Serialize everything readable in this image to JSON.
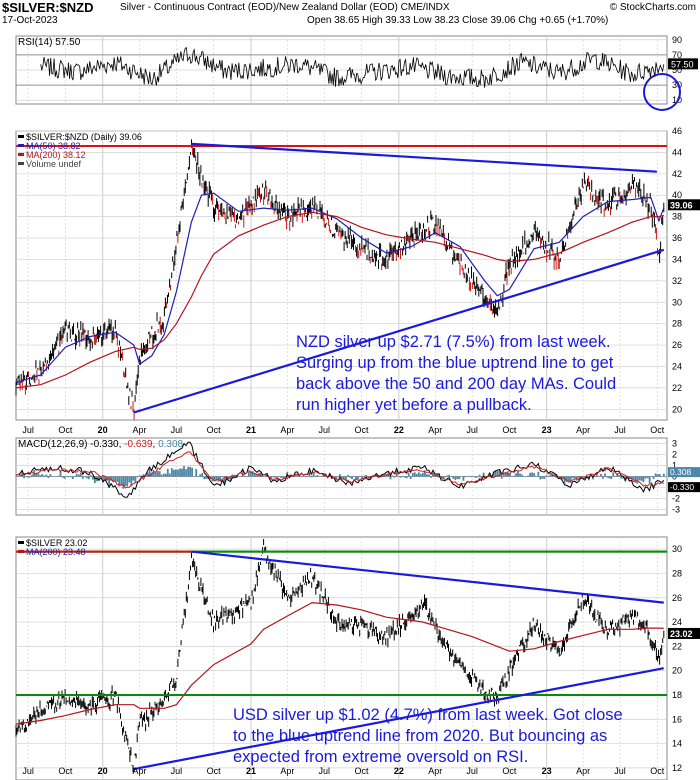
{
  "header": {
    "symbol": "$SILVER:$NZD",
    "description": "Silver - Continuous Contract (EOD)/New Zealand Dollar (EOD) CME/INDX",
    "date": "17-Oct-2023",
    "ohlc": "Open 38.65  High 39.33  Low 38.23  Close 39.06  Chg +0.65 (+1.70%)",
    "credit": "© StockCharts.com"
  },
  "annotations": {
    "nzd_note": "NZD silver up $2.71 (7.5%) from last week.\nSurging up from the blue uptrend line to get\nback above the 50 and 200 day MAs. Could\nrun higher yet before a pullback.",
    "usd_note": "USD silver up $1.02 (4.7%) from last week. Got close\nto the blue uptrend line from 2020. But bouncing as\nexpected from extreme oversold on RSI."
  },
  "colors": {
    "price": "#000000",
    "ma50": "#1f1fb4",
    "ma200": "#b4141e",
    "macd": "#000000",
    "signal": "#cc2020",
    "histogram": "#4a87a8",
    "trend": "#1a1adc",
    "resistance": "#e01010",
    "support": "#0a8a0a",
    "grid": "#d0d0d0"
  },
  "chart_data": [
    {
      "type": "line",
      "panel": "RSI",
      "legend": "RSI(14) 57.50",
      "ylim": [
        5,
        95
      ],
      "yticks": [
        10,
        30,
        50,
        70,
        90
      ],
      "overbought": 70,
      "oversold": 30,
      "last_value": 57.5,
      "last_label": "57.50",
      "x": [
        "2019-08",
        "2019-11",
        "2020-02",
        "2020-05",
        "2020-08",
        "2020-11",
        "2021-02",
        "2021-05",
        "2021-08",
        "2021-11",
        "2022-02",
        "2022-05",
        "2022-08",
        "2022-11",
        "2023-02",
        "2023-05",
        "2023-08",
        "2023-10-17"
      ],
      "values": [
        55,
        48,
        60,
        38,
        72,
        48,
        52,
        58,
        40,
        47,
        55,
        42,
        38,
        60,
        46,
        65,
        44,
        57.5
      ]
    },
    {
      "type": "line",
      "panel": "$SILVER:$NZD",
      "legend": [
        "$SILVER:$NZD (Daily) 39.06",
        "MA(50) 38.82",
        "MA(200) 38.12",
        "Volume undef"
      ],
      "ylim": [
        19,
        46
      ],
      "yticks": [
        20,
        22,
        24,
        26,
        28,
        30,
        32,
        34,
        36,
        38,
        40,
        42,
        44,
        46
      ],
      "last_value": 39.06,
      "last_label": "39.06",
      "x": [
        "2019-06",
        "2019-08",
        "2019-10",
        "2019-12",
        "2020-02",
        "2020-03-18",
        "2020-04",
        "2020-05",
        "2020-06",
        "2020-07",
        "2020-08-07",
        "2020-09",
        "2020-10",
        "2020-12",
        "2021-02",
        "2021-04",
        "2021-06",
        "2021-08",
        "2021-10",
        "2021-12",
        "2022-02",
        "2022-04",
        "2022-06",
        "2022-08",
        "2022-09-01",
        "2022-10",
        "2022-12",
        "2023-02",
        "2023-04",
        "2023-06",
        "2023-08",
        "2023-09-15",
        "2023-10-05",
        "2023-10-17"
      ],
      "series": [
        {
          "name": "$SILVER:$NZD",
          "values": [
            22.2,
            23.5,
            27.2,
            26.8,
            27.5,
            19.7,
            24.5,
            27.0,
            28.5,
            35.5,
            44.8,
            41.5,
            39.0,
            37.5,
            40.5,
            38.0,
            39.0,
            36.5,
            35.0,
            34.0,
            36.0,
            37.5,
            33.5,
            30.5,
            28.8,
            33.5,
            36.5,
            34.0,
            41.0,
            39.0,
            41.0,
            39.0,
            34.2,
            39.06
          ]
        },
        {
          "name": "MA(50)",
          "values": [
            22.5,
            23.2,
            25.8,
            26.8,
            27.2,
            26.0,
            24.2,
            25.0,
            27.0,
            31.0,
            37.5,
            40.0,
            40.2,
            38.5,
            38.8,
            38.6,
            38.8,
            37.8,
            36.0,
            34.6,
            35.2,
            36.5,
            35.2,
            32.0,
            30.6,
            31.2,
            35.0,
            35.6,
            38.0,
            39.4,
            39.6,
            39.8,
            37.6,
            38.82
          ]
        },
        {
          "name": "MA(200)",
          "values": [
            22.0,
            22.3,
            23.2,
            24.4,
            25.4,
            25.8,
            25.6,
            25.7,
            26.5,
            28.0,
            30.5,
            32.5,
            34.5,
            36.2,
            37.2,
            38.0,
            38.4,
            38.0,
            37.0,
            36.3,
            35.9,
            35.6,
            35.0,
            34.4,
            34.0,
            33.8,
            34.0,
            34.6,
            35.6,
            36.5,
            37.5,
            38.0,
            38.0,
            38.12
          ]
        }
      ],
      "resistance_line": {
        "y": 44.6
      },
      "downtrend_line": {
        "x": [
          "2020-08-07",
          "2023-09-30"
        ],
        "y": [
          44.8,
          42.2
        ]
      },
      "uptrend_line": {
        "x": [
          "2020-03-18",
          "2023-10-17"
        ],
        "y": [
          19.7,
          34.9
        ]
      }
    },
    {
      "type": "line",
      "panel": "MACD",
      "legend": {
        "name": "MACD(12,26,9)",
        "macd": "-0.330",
        "signal": "-0.639",
        "hist": "0.308"
      },
      "ylim": [
        -3.5,
        3.5
      ],
      "yticks": [
        -3,
        -2,
        -1,
        0,
        1,
        2,
        3
      ],
      "last_labels": [
        "0.308",
        "-0.330"
      ],
      "x": [
        "2019-06",
        "2019-09",
        "2019-12",
        "2020-03",
        "2020-05",
        "2020-08",
        "2020-10",
        "2021-01",
        "2021-03",
        "2021-06",
        "2021-09",
        "2021-12",
        "2022-03",
        "2022-06",
        "2022-09",
        "2022-12",
        "2023-03",
        "2023-06",
        "2023-09",
        "2023-10-17"
      ],
      "series": [
        {
          "name": "MACD",
          "values": [
            0.2,
            0.8,
            0.4,
            -1.8,
            0.8,
            3.0,
            -1.0,
            0.8,
            -0.4,
            0.5,
            -0.6,
            0.3,
            0.8,
            -0.9,
            0.3,
            1.1,
            -0.8,
            0.9,
            -1.2,
            -0.33
          ]
        },
        {
          "name": "Signal",
          "values": [
            0.1,
            0.6,
            0.5,
            -1.0,
            0.3,
            2.4,
            -0.5,
            0.5,
            -0.3,
            0.4,
            -0.5,
            0.2,
            0.6,
            -0.7,
            0.1,
            0.9,
            -0.5,
            0.7,
            -0.8,
            -0.639
          ]
        }
      ]
    },
    {
      "type": "line",
      "panel": "$SILVER",
      "legend": [
        "$SILVER 23.02",
        "MA(200) 23.48"
      ],
      "ylim": [
        11,
        31
      ],
      "yticks": [
        12,
        14,
        16,
        18,
        20,
        22,
        24,
        26,
        28,
        30
      ],
      "last_value": 23.02,
      "last_label": "23.02",
      "x": [
        "2019-06",
        "2019-08",
        "2019-10",
        "2019-12",
        "2020-02",
        "2020-03-18",
        "2020-04",
        "2020-06",
        "2020-07",
        "2020-08-07",
        "2020-10",
        "2021-01",
        "2021-02-01",
        "2021-04",
        "2021-06",
        "2021-08",
        "2021-10",
        "2021-12",
        "2022-03",
        "2022-05",
        "2022-07",
        "2022-09-01",
        "2022-10",
        "2022-12",
        "2023-02",
        "2023-04",
        "2023-06",
        "2023-08",
        "2023-09",
        "2023-10-05",
        "2023-10-17"
      ],
      "series": [
        {
          "name": "$SILVER",
          "values": [
            14.8,
            16.8,
            17.8,
            17.2,
            17.9,
            11.9,
            15.5,
            17.6,
            19.5,
            29.2,
            24.0,
            25.5,
            30.2,
            26.0,
            27.8,
            24.0,
            23.8,
            22.7,
            25.5,
            22.0,
            19.2,
            17.6,
            20.0,
            23.9,
            21.5,
            25.8,
            23.2,
            24.5,
            23.8,
            20.7,
            23.02
          ]
        },
        {
          "name": "MA(200)",
          "values": [
            15.6,
            15.9,
            16.3,
            16.8,
            17.2,
            17.2,
            16.9,
            16.9,
            17.2,
            18.8,
            20.5,
            22.2,
            23.4,
            24.5,
            25.6,
            25.4,
            25.0,
            24.4,
            24.0,
            23.4,
            22.8,
            22.0,
            21.6,
            21.8,
            22.4,
            22.9,
            23.4,
            23.4,
            23.5,
            23.5,
            23.48
          ]
        }
      ],
      "resistance_line": {
        "y": 29.8
      },
      "support_line": {
        "y": 18.0
      },
      "downtrend_line": {
        "x": [
          "2020-08-07",
          "2023-10-17"
        ],
        "y": [
          29.8,
          25.6
        ]
      },
      "uptrend_line": {
        "x": [
          "2020-03-18",
          "2023-10-17"
        ],
        "y": [
          11.9,
          20.2
        ]
      }
    }
  ],
  "x_axis": {
    "labels": [
      "Jul",
      "Oct",
      "20",
      "Apr",
      "Jul",
      "Oct",
      "21",
      "Apr",
      "Jul",
      "Oct",
      "22",
      "Apr",
      "Jul",
      "Oct",
      "23",
      "Apr",
      "Jul",
      "Oct"
    ]
  }
}
